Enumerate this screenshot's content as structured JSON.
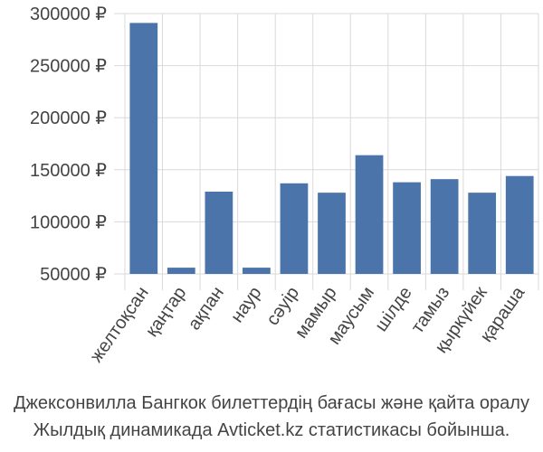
{
  "chart_data": {
    "type": "bar",
    "title": "",
    "xlabel": "",
    "ylabel": "",
    "currency_symbol": "₽",
    "categories": [
      "желтоқсан",
      "қаңтар",
      "ақпан",
      "наур",
      "сәуір",
      "мамыр",
      "маусым",
      "шілде",
      "тамыз",
      "қыркүйек",
      "қараша"
    ],
    "values": [
      291000,
      56000,
      129000,
      56000,
      137000,
      128000,
      164000,
      138000,
      141000,
      128000,
      144000
    ],
    "ylim": [
      50000,
      300000
    ],
    "yticks": [
      50000,
      100000,
      150000,
      200000,
      250000,
      300000
    ],
    "ytick_labels": [
      "50000 ₽",
      "100000 ₽",
      "150000 ₽",
      "200000 ₽",
      "250000 ₽",
      "300000 ₽"
    ],
    "grid": true,
    "legend": "none",
    "bar_color": "#4a74aa"
  },
  "caption": {
    "line1": "Джексонвилла Бангкок билеттердің бағасы және қайта оралу",
    "line2": "Жылдық динамикада Avticket.kz статистикасы бойынша."
  }
}
